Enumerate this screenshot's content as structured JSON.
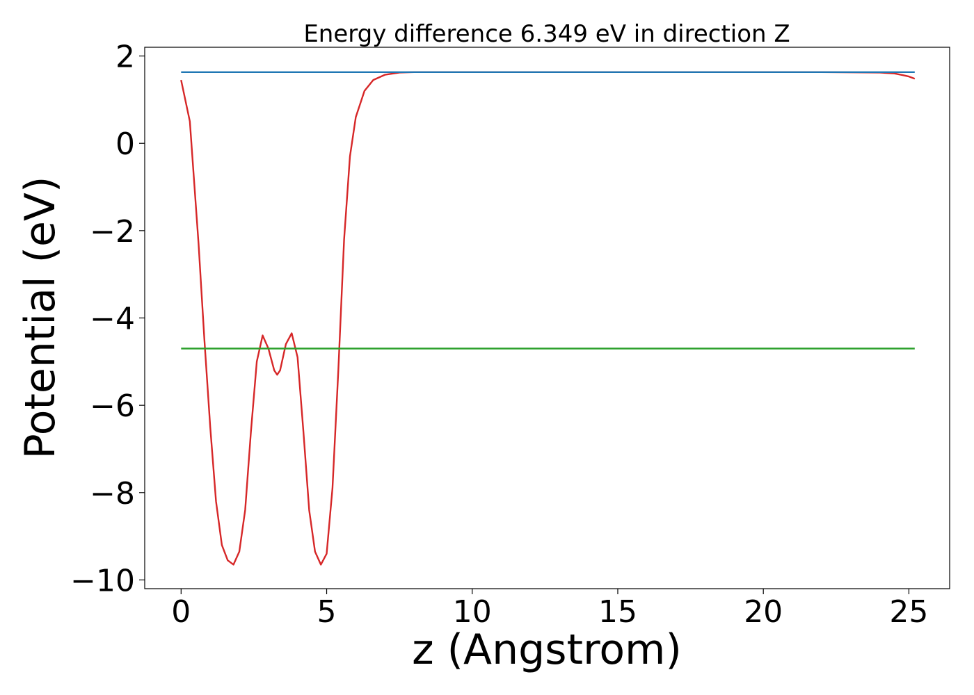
{
  "chart_data": {
    "type": "line",
    "title": "Energy difference 6.349 eV in direction Z",
    "xlabel": "z (Angstrom)",
    "ylabel": "Potential (eV)",
    "xlim": [
      -1.25,
      26.4
    ],
    "ylim": [
      -10.2,
      2.2
    ],
    "x_ticks": [
      0,
      5,
      10,
      15,
      20,
      25
    ],
    "y_ticks": [
      2,
      0,
      -2,
      -4,
      -6,
      -8,
      -10
    ],
    "x_tick_labels": [
      "0",
      "5",
      "10",
      "15",
      "20",
      "25"
    ],
    "y_tick_labels": [
      "2",
      "0",
      "−2",
      "−4",
      "−6",
      "−8",
      "−10"
    ],
    "grid": false,
    "series": [
      {
        "color": "#d62728",
        "x": [
          0,
          0.3,
          0.6,
          0.8,
          1.0,
          1.2,
          1.4,
          1.6,
          1.8,
          2.0,
          2.2,
          2.4,
          2.6,
          2.8,
          3.0,
          3.2,
          3.3,
          3.4,
          3.6,
          3.8,
          4.0,
          4.2,
          4.4,
          4.6,
          4.8,
          5.0,
          5.2,
          5.4,
          5.6,
          5.8,
          6.0,
          6.3,
          6.6,
          7.0,
          7.5,
          8.0,
          9.0,
          10,
          12,
          15,
          18,
          20,
          22,
          24,
          24.5,
          24.8,
          25.0,
          25.2
        ],
        "y": [
          1.45,
          0.5,
          -2.3,
          -4.5,
          -6.5,
          -8.2,
          -9.2,
          -9.55,
          -9.65,
          -9.35,
          -8.4,
          -6.6,
          -5.0,
          -4.4,
          -4.7,
          -5.2,
          -5.3,
          -5.2,
          -4.6,
          -4.35,
          -4.9,
          -6.6,
          -8.4,
          -9.35,
          -9.65,
          -9.4,
          -7.9,
          -5.2,
          -2.2,
          -0.3,
          0.6,
          1.2,
          1.45,
          1.57,
          1.62,
          1.63,
          1.63,
          1.63,
          1.63,
          1.63,
          1.63,
          1.63,
          1.63,
          1.62,
          1.6,
          1.56,
          1.53,
          1.48
        ]
      },
      {
        "color": "#1f77b4",
        "x": [
          0,
          25.2
        ],
        "y": [
          1.63,
          1.63
        ]
      },
      {
        "color": "#2ca02c",
        "x": [
          0,
          25.2
        ],
        "y": [
          -4.7,
          -4.7
        ]
      }
    ]
  }
}
